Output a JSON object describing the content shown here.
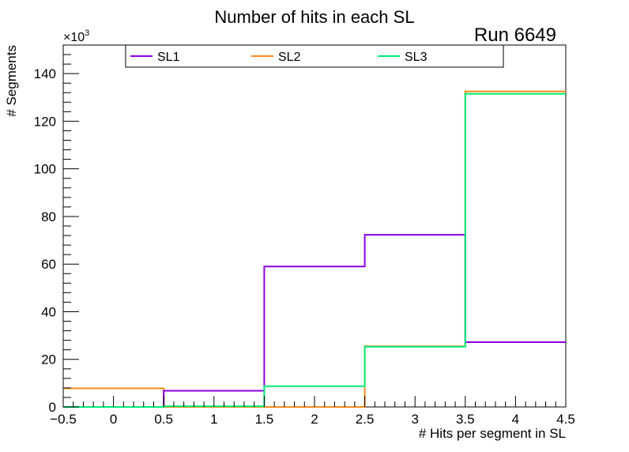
{
  "chart_data": {
    "type": "histogram-step",
    "title": "Number of hits in each SL",
    "annotation": "Run 6649",
    "xlabel": "# Hits per segment in SL",
    "ylabel": "# Segments",
    "y_exponent_label": "×10",
    "y_exponent_power": "3",
    "xlim": [
      -0.5,
      4.5
    ],
    "ylim": [
      0,
      152
    ],
    "x_ticks": [
      -0.5,
      0,
      0.5,
      1,
      1.5,
      2,
      2.5,
      3,
      3.5,
      4,
      4.5
    ],
    "x_tick_labels": [
      "−0.5",
      "0",
      "0.5",
      "1",
      "1.5",
      "2",
      "2.5",
      "3",
      "3.5",
      "4",
      "4.5"
    ],
    "y_ticks": [
      0,
      20,
      40,
      60,
      80,
      100,
      120,
      140
    ],
    "y_tick_labels": [
      "0",
      "20",
      "40",
      "60",
      "80",
      "100",
      "120",
      "140"
    ],
    "bin_edges": [
      -0.5,
      0.5,
      1.5,
      2.5,
      3.5,
      4.5
    ],
    "legend_placement": "top",
    "grid": false,
    "series": [
      {
        "name": "SL1",
        "color": "#8b00e0",
        "values": [
          0,
          6.8,
          59,
          72.3,
          27.2
        ]
      },
      {
        "name": "SL2",
        "color": "#ff8c1a",
        "values": [
          7.8,
          0,
          0,
          25.5,
          132.5
        ]
      },
      {
        "name": "SL3",
        "color": "#00f07a",
        "values": [
          0,
          0.3,
          8.7,
          25.3,
          131.5
        ]
      }
    ]
  }
}
